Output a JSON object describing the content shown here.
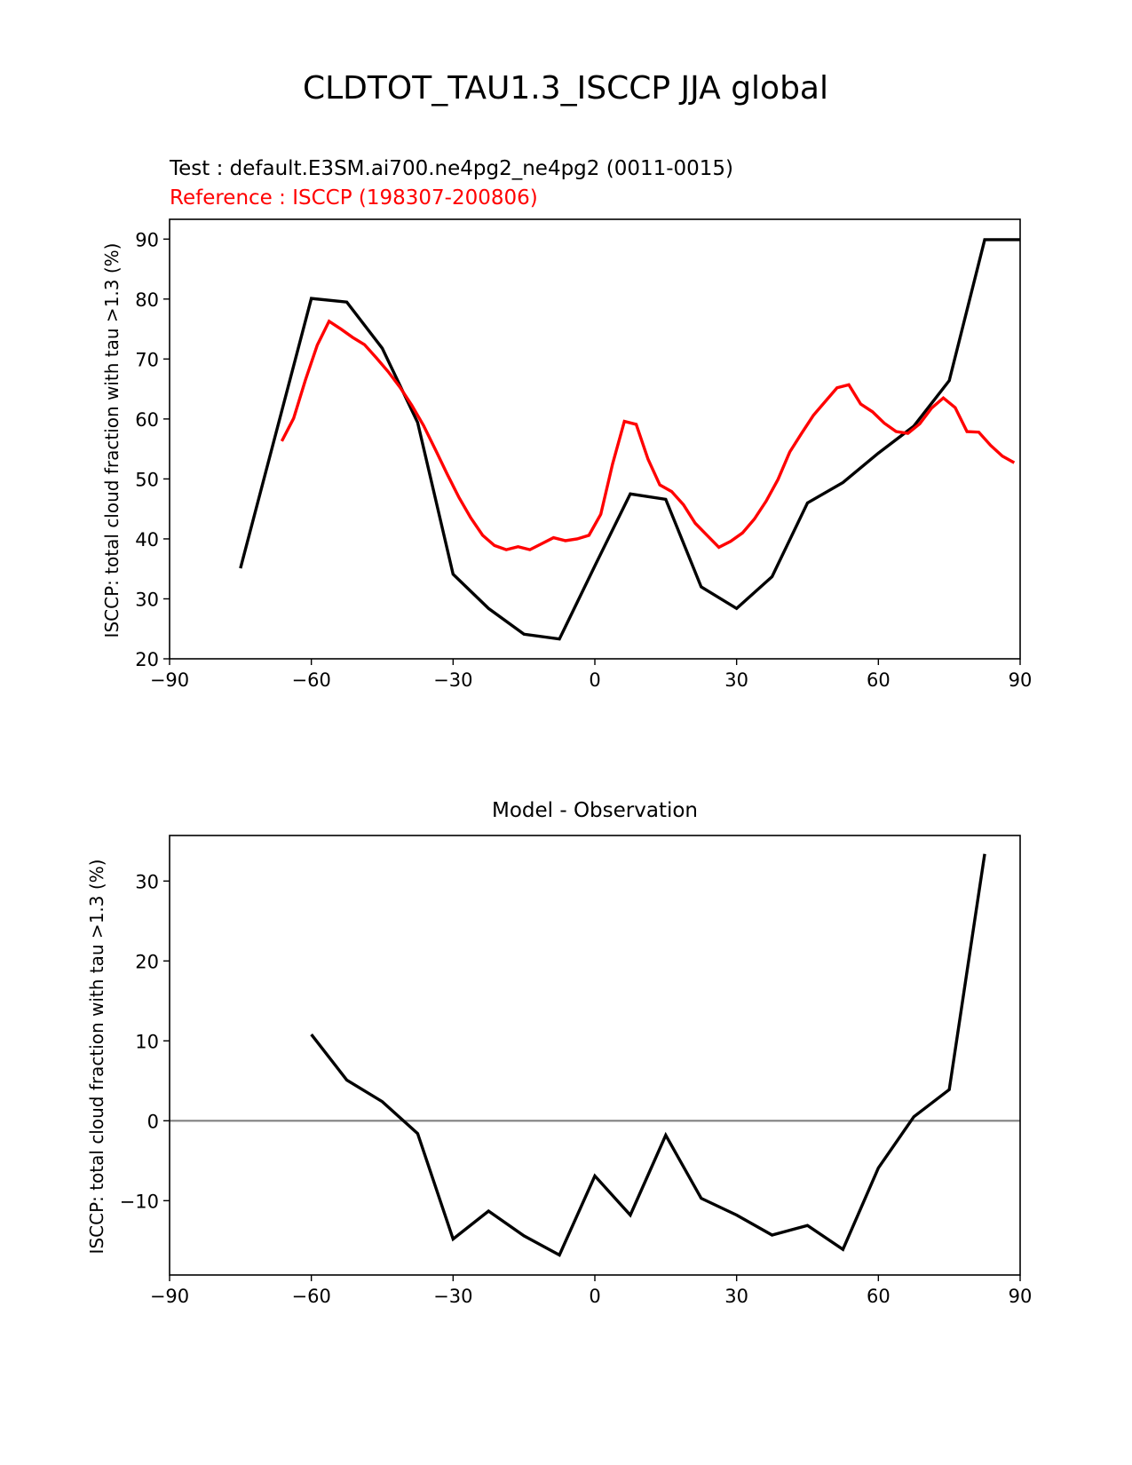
{
  "figure": {
    "suptitle": "CLDTOT_TAU1.3_ISCCP JJA global",
    "colors": {
      "test": "#000000",
      "reference": "#ff0000",
      "zero_line": "#808080"
    }
  },
  "chart_data": [
    {
      "type": "line",
      "title": "",
      "test_label": "Test : default.E3SM.ai700.ne4pg2_ne4pg2 (0011-0015)",
      "reference_label": "Reference : ISCCP (198307-200806)",
      "xlabel": "",
      "ylabel": "ISCCP: total cloud fraction with tau >1.3 (%)",
      "xlim": [
        -90,
        90
      ],
      "ylim": [
        20,
        93.3
      ],
      "xticks": [
        -90,
        -60,
        -30,
        0,
        30,
        60,
        90
      ],
      "yticks": [
        20,
        30,
        40,
        50,
        60,
        70,
        80,
        90
      ],
      "series": [
        {
          "key": "test",
          "color": "#000000",
          "x": [
            -75,
            -60,
            -52.5,
            -45,
            -37.5,
            -30,
            -22.5,
            -15,
            -7.5,
            0,
            7.5,
            15,
            22.5,
            30,
            37.5,
            45,
            52.5,
            60,
            67.5,
            75,
            82.5,
            90
          ],
          "y": [
            35.1,
            80.1,
            79.5,
            71.8,
            59.4,
            34.1,
            28.4,
            24.1,
            23.3,
            35.5,
            47.5,
            46.6,
            32.0,
            28.4,
            33.7,
            46.0,
            49.4,
            54.3,
            58.8,
            66.4,
            89.9,
            89.9
          ]
        },
        {
          "key": "reference",
          "color": "#ff0000",
          "x": [
            -66.25,
            -63.75,
            -61.25,
            -58.75,
            -56.25,
            -53.75,
            -51.25,
            -48.75,
            -46.25,
            -43.75,
            -41.25,
            -38.75,
            -36.25,
            -33.75,
            -31.25,
            -28.75,
            -26.25,
            -23.75,
            -21.25,
            -18.75,
            -16.25,
            -13.75,
            -11.25,
            -8.75,
            -6.25,
            -3.75,
            -1.25,
            1.25,
            3.75,
            6.25,
            8.75,
            11.25,
            13.75,
            16.25,
            18.75,
            21.25,
            23.75,
            26.25,
            28.75,
            31.25,
            33.75,
            36.25,
            38.75,
            41.25,
            43.75,
            46.25,
            48.75,
            51.25,
            53.75,
            56.25,
            58.75,
            61.25,
            63.75,
            66.25,
            68.75,
            71.25,
            73.75,
            76.25,
            78.75,
            81.25,
            83.75,
            86.25,
            88.75
          ],
          "y": [
            56.3,
            60.1,
            66.5,
            72.3,
            76.3,
            75.0,
            73.6,
            72.4,
            70.2,
            67.9,
            65.3,
            62.3,
            58.9,
            54.9,
            50.8,
            46.9,
            43.5,
            40.6,
            38.9,
            38.2,
            38.7,
            38.2,
            39.2,
            40.2,
            39.7,
            40.0,
            40.6,
            44.1,
            52.5,
            59.6,
            59.1,
            53.3,
            49.0,
            47.9,
            45.7,
            42.6,
            40.6,
            38.6,
            39.6,
            41.0,
            43.3,
            46.3,
            49.9,
            54.5,
            57.6,
            60.6,
            62.9,
            65.2,
            65.7,
            62.5,
            61.2,
            59.3,
            57.9,
            57.6,
            59.2,
            61.8,
            63.5,
            61.9,
            57.9,
            57.8,
            55.6,
            53.8,
            52.7
          ]
        }
      ]
    },
    {
      "type": "line",
      "title": "Model - Observation",
      "xlabel": "",
      "ylabel": "ISCCP: total cloud fraction with tau >1.3 (%)",
      "xlim": [
        -90,
        90
      ],
      "ylim": [
        -19.3,
        35.7
      ],
      "xticks": [
        -90,
        -60,
        -30,
        0,
        30,
        60,
        90
      ],
      "yticks": [
        -10,
        0,
        10,
        20,
        30
      ],
      "zero_line": 0,
      "series": [
        {
          "key": "difference",
          "color": "#000000",
          "x": [
            -60,
            -52.5,
            -45,
            -37.5,
            -30,
            -22.5,
            -15,
            -7.5,
            0,
            7.5,
            15,
            22.5,
            30,
            37.5,
            45,
            52.5,
            60,
            67.5,
            75,
            82.5
          ],
          "y": [
            10.8,
            5.1,
            2.4,
            -1.6,
            -14.8,
            -11.3,
            -14.4,
            -16.8,
            -6.9,
            -11.8,
            -1.8,
            -9.7,
            -11.8,
            -14.3,
            -13.1,
            -16.1,
            -5.9,
            0.5,
            3.9,
            33.4
          ]
        }
      ]
    }
  ]
}
